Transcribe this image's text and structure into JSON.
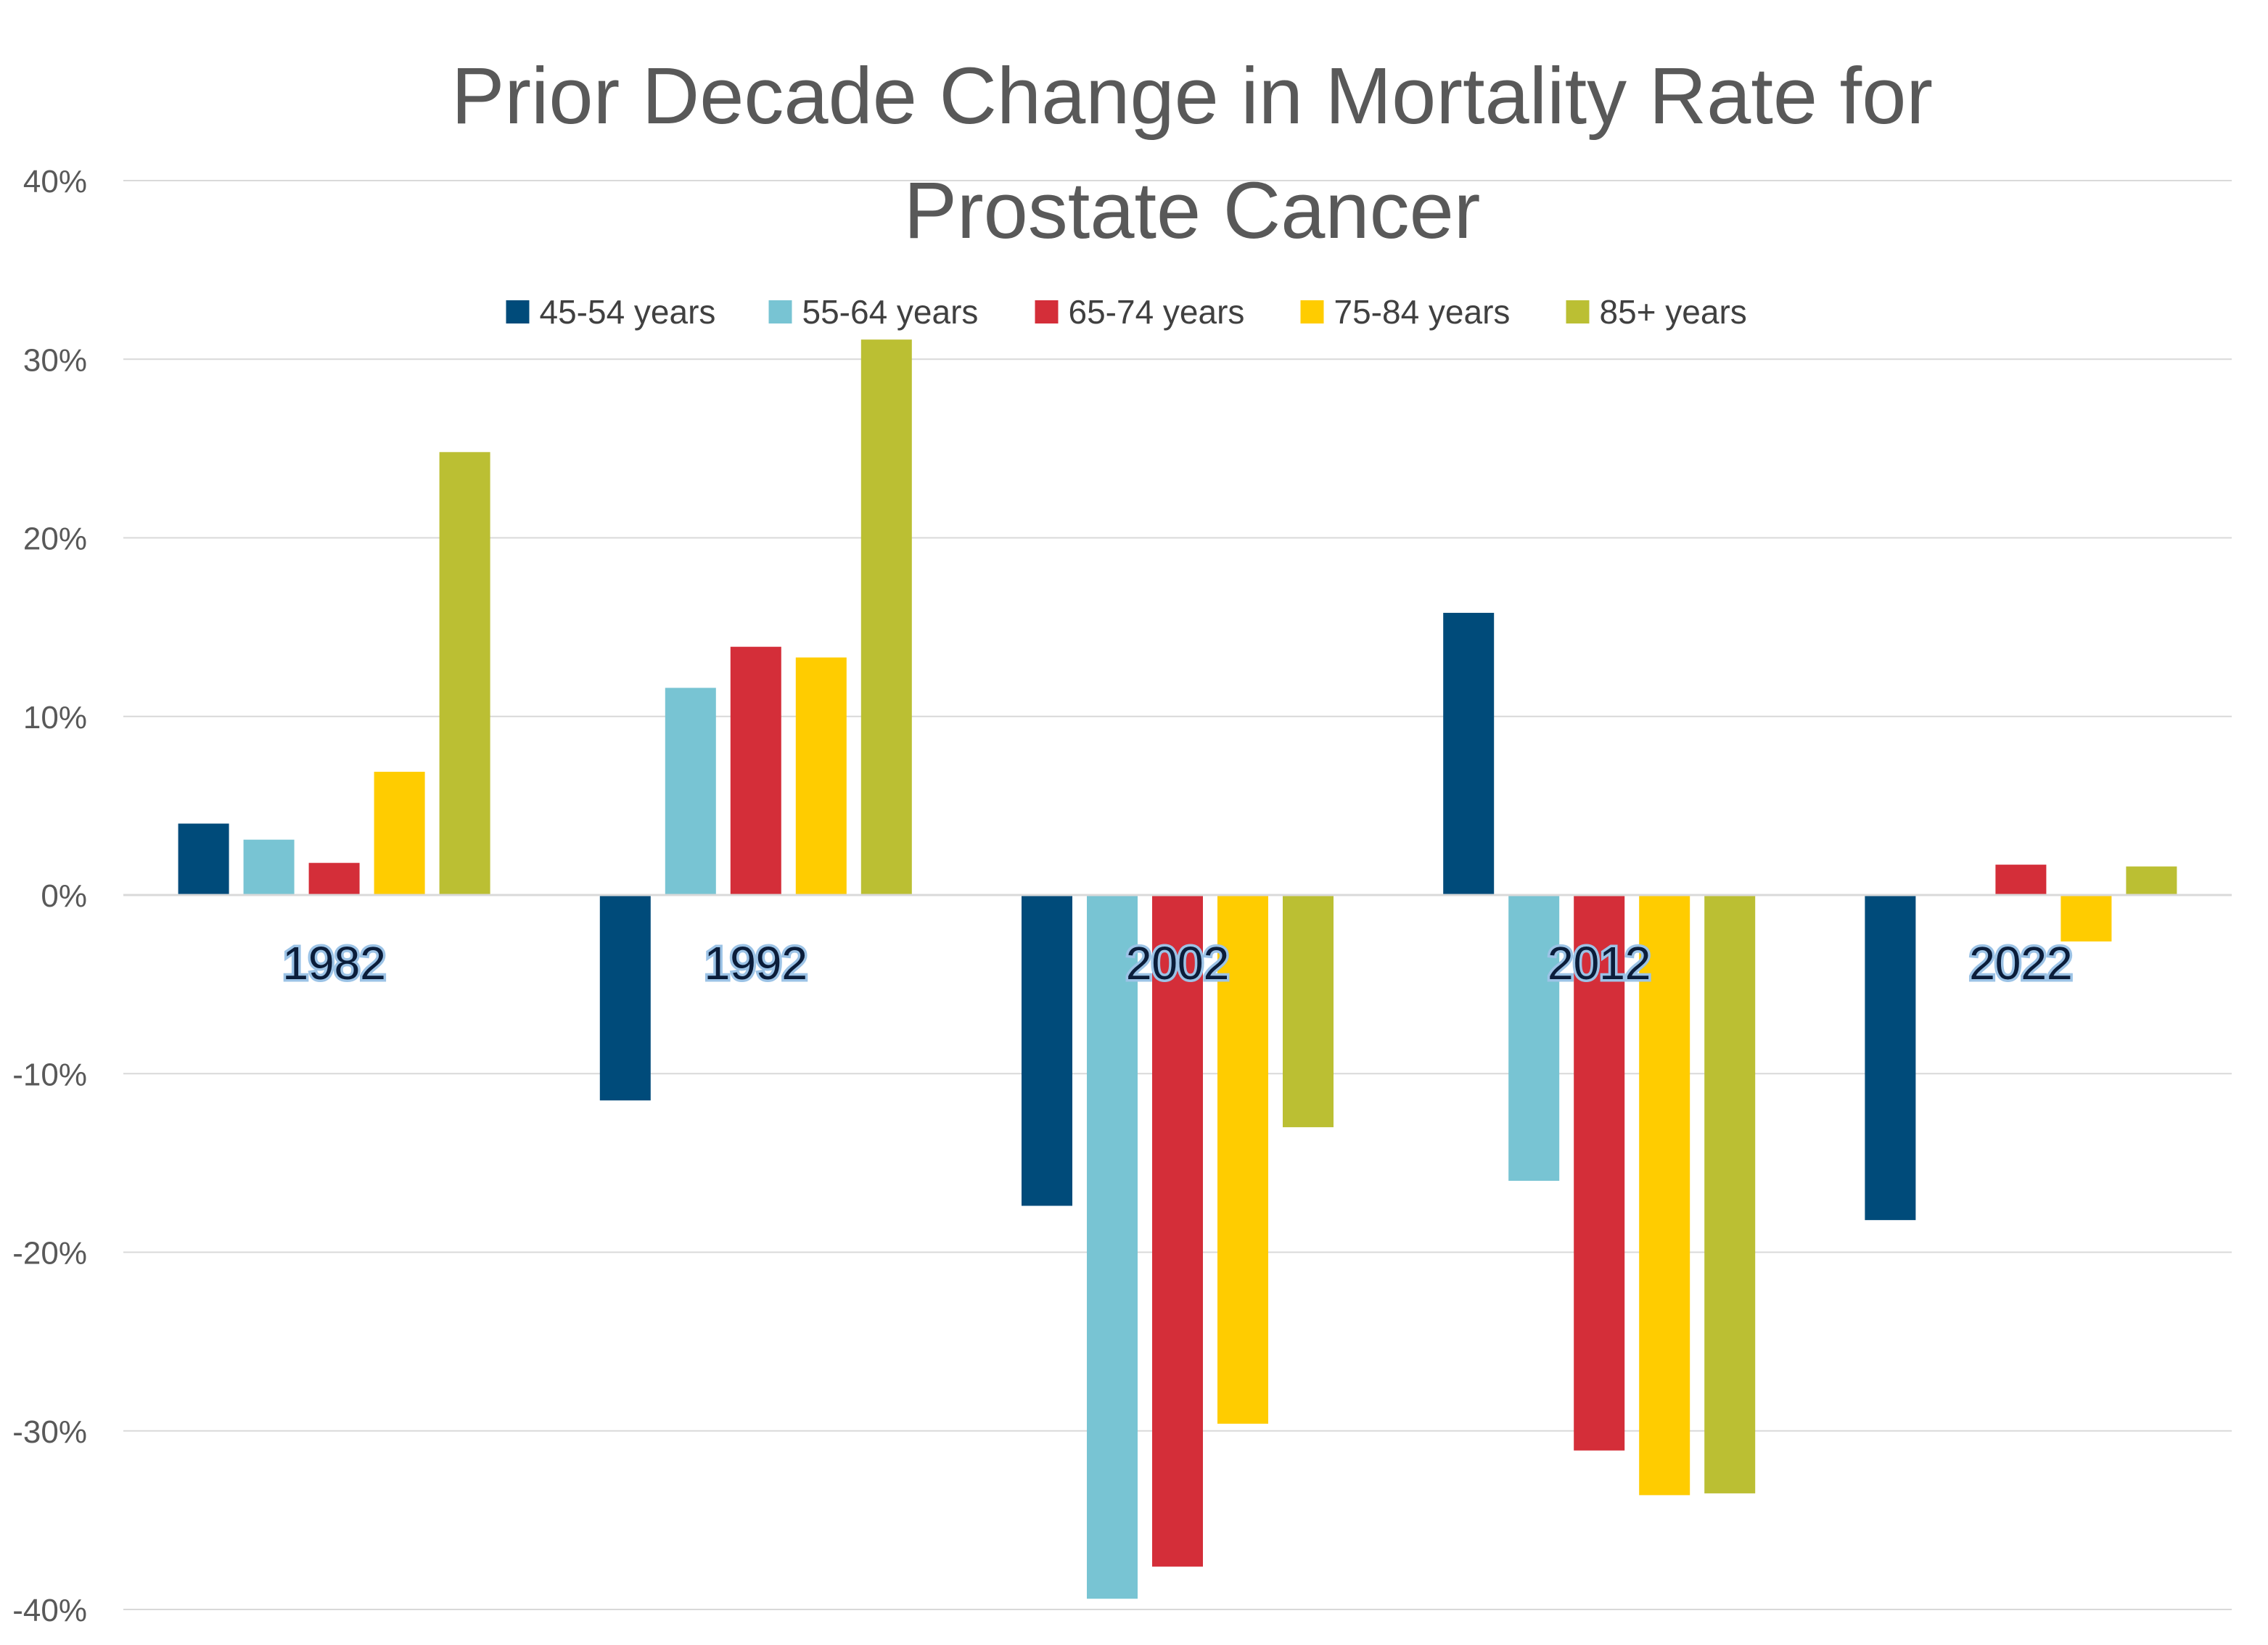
{
  "chart_data": {
    "type": "bar",
    "title_lines": [
      "Prior Decade Change in Mortality Rate for",
      "Prostate Cancer"
    ],
    "categories": [
      "1982",
      "1992",
      "2002",
      "2012",
      "2022"
    ],
    "series": [
      {
        "name": "45-54 years",
        "color": "#004b7a",
        "values": [
          4,
          -11.5,
          -17.4,
          15.8,
          -18.2
        ]
      },
      {
        "name": "55-64 years",
        "color": "#78c4d3",
        "values": [
          3.1,
          11.6,
          -39.4,
          -16,
          0
        ]
      },
      {
        "name": "65-74 years",
        "color": "#d42e39",
        "values": [
          1.8,
          13.9,
          -37.6,
          -31.1,
          1.7
        ]
      },
      {
        "name": "75-84 years",
        "color": "#ffcc00",
        "values": [
          6.9,
          13.3,
          -29.6,
          -33.6,
          -2.6
        ]
      },
      {
        "name": "85+ years",
        "color": "#bbbf33",
        "values": [
          24.8,
          31.1,
          -13,
          -33.5,
          1.6
        ]
      }
    ],
    "ylim": [
      -40,
      40
    ],
    "yticks": [
      40,
      30,
      20,
      10,
      0,
      -10,
      -20,
      -30,
      -40
    ],
    "ytick_labels": [
      "40%",
      "30%",
      "20%",
      "10%",
      "0%",
      "-10%",
      "-20%",
      "-30%",
      "-40%"
    ],
    "xlabel": "",
    "ylabel": "",
    "grid": true,
    "legend_position": "top-center",
    "category_labels_position": "below zero line"
  }
}
